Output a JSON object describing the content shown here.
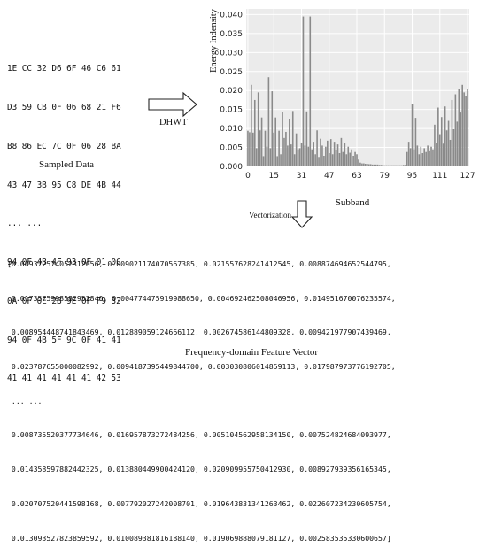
{
  "sampled": {
    "lines": [
      "1E CC 32 D6 6F 46 C6 61",
      "D3 59 CB 0F 06 68 21 F6",
      "B8 86 EC 7C 0F 06 28 BA",
      "43 47 3B 95 C8 DE 4B 44",
      "... ...",
      "94 0F 4B 4F 93 0F 01 0C",
      "0A 0F 0E 2B 9E 0F F9 32",
      "94 0F 4B 5F 9C 0F 41 41",
      "41 41 41 41 41 41 42 53"
    ],
    "caption": "Sampled Data"
  },
  "arrows": {
    "dhwt_label": "DHWT",
    "vectorization_label": "Vectorization"
  },
  "chart_data": {
    "type": "bar",
    "xlabel": "Subband",
    "ylabel": "Energy Indensity",
    "xticks": [
      "0",
      "15",
      "31",
      "47",
      "63",
      "79",
      "95",
      "111",
      "127"
    ],
    "yticks": [
      "0.000",
      "0.005",
      "0.010",
      "0.015",
      "0.020",
      "0.025",
      "0.030",
      "0.035",
      "0.040"
    ],
    "ylim": [
      0,
      0.0415
    ],
    "xlim": [
      -1,
      128
    ],
    "grid": true,
    "values": [
      0.0094,
      0.009,
      0.0215,
      0.0089,
      0.0175,
      0.0048,
      0.0195,
      0.0095,
      0.0129,
      0.0027,
      0.0094,
      0.0052,
      0.0235,
      0.0048,
      0.0198,
      0.0089,
      0.0129,
      0.0027,
      0.0094,
      0.0032,
      0.0143,
      0.0075,
      0.0091,
      0.0055,
      0.0125,
      0.0058,
      0.0146,
      0.0032,
      0.0087,
      0.0045,
      0.0048,
      0.0063,
      0.0395,
      0.0055,
      0.0145,
      0.0052,
      0.0395,
      0.0045,
      0.0065,
      0.0032,
      0.0095,
      0.0025,
      0.0073,
      0.0055,
      0.0028,
      0.0052,
      0.0068,
      0.0035,
      0.0072,
      0.0032,
      0.0065,
      0.0042,
      0.0058,
      0.0035,
      0.0075,
      0.0038,
      0.0062,
      0.0032,
      0.0052,
      0.0036,
      0.0045,
      0.0028,
      0.0038,
      0.0032,
      0.0018,
      0.001,
      0.0008,
      0.0008,
      0.0007,
      0.0007,
      0.0006,
      0.0006,
      0.0005,
      0.0005,
      0.0005,
      0.0005,
      0.0004,
      0.0004,
      0.0004,
      0.0003,
      0.0003,
      0.0003,
      0.0003,
      0.0003,
      0.0003,
      0.0003,
      0.0003,
      0.0003,
      0.0003,
      0.0003,
      0.0004,
      0.0004,
      0.0038,
      0.0065,
      0.0048,
      0.0165,
      0.0045,
      0.0128,
      0.0055,
      0.0032,
      0.0052,
      0.0035,
      0.0048,
      0.0038,
      0.0055,
      0.004,
      0.0052,
      0.0045,
      0.011,
      0.0062,
      0.0155,
      0.0085,
      0.013,
      0.006,
      0.0158,
      0.0095,
      0.012,
      0.007,
      0.0175,
      0.0098,
      0.019,
      0.0118,
      0.0205,
      0.0142,
      0.0215,
      0.0195,
      0.0185,
      0.0205
    ]
  },
  "vector": {
    "lines": [
      "[0.009372574052312056, 0.00902117407056738​5, 0.021557628241412545, 0.008874694652544795,",
      " 0.017357599858295284​0, 0.004774475919988650, 0.004692462508046956, 0.014951670076235574,",
      " 0.008954448741843469, 0.012889059124666112, 0.002674586144809328, 0.009421977907439469,",
      " 0.023787655000082992, 0.009418739544984470​0, 0.003030806014859113, 0.017987973776192705,",
      " ... ...",
      " 0.008735520377734646, 0.016957873272484256, 0.005104562958134150, 0.007524824684093977,",
      " 0.014358597882442325, 0.013880449900424120, 0.020909955750412930, 0.008927939356165345,",
      " 0.020707520441598168, 0.007792027242008701, 0.019643831341263462, 0.022607234230605754,",
      " 0.013093527823859592, 0.010089381816188140, 0.019069888079181127, 0.002583535330600657]"
    ],
    "caption": "Frequency-domain Feature Vector"
  }
}
